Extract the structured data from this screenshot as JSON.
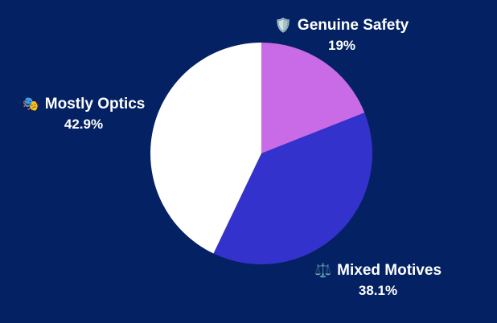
{
  "chart_data": {
    "type": "pie",
    "title": "",
    "slices": [
      {
        "label": "Genuine Safety",
        "value": 19,
        "display": "19%",
        "color": "#c96ae6",
        "icon": "🛡️",
        "icon_name": "shield-icon"
      },
      {
        "label": "Mixed Motives",
        "value": 38.1,
        "display": "38.1%",
        "color": "#3432cc",
        "icon": "⚖️",
        "icon_name": "scales-icon"
      },
      {
        "label": "Mostly Optics",
        "value": 42.9,
        "display": "42.9%",
        "color": "#ffffff",
        "icon": "🎭",
        "icon_name": "theater-masks-icon"
      }
    ],
    "start_angle": "12 o'clock",
    "direction": "clockwise",
    "legend": "none"
  },
  "colors": {
    "background": "#032163",
    "label_text": "#ffffff"
  }
}
